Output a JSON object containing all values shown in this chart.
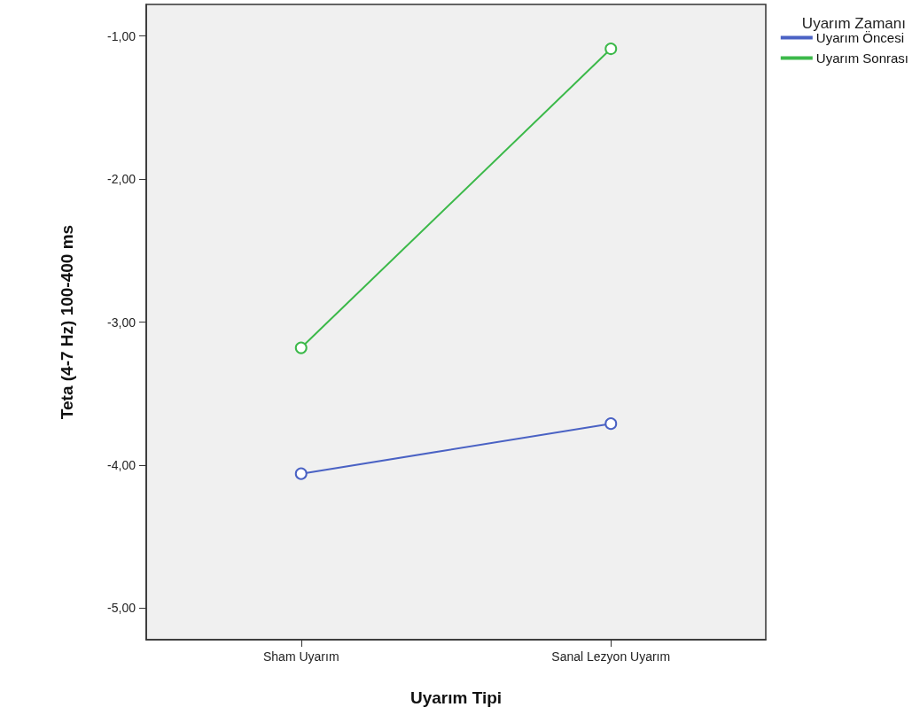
{
  "chart_data": {
    "type": "line",
    "xlabel": "Uyarım Tipi",
    "ylabel": "Teta (4-7 Hz) 100-400 ms",
    "legend_title": "Uyarım Zamanı",
    "categories": [
      "Sham Uyarım",
      "Sanal Lezyon Uyarım"
    ],
    "series": [
      {
        "name": "Uyarım Öncesi",
        "color": "#4a62c4",
        "values": [
          -4.06,
          -3.71
        ]
      },
      {
        "name": "Uyarım Sonrası",
        "color": "#3cb94a",
        "values": [
          -3.18,
          -1.09
        ]
      }
    ],
    "ylim": [
      -5.22,
      -0.78
    ],
    "yticks": [
      {
        "value": -5,
        "label": "-5,00"
      },
      {
        "value": -4,
        "label": "-4,00"
      },
      {
        "value": -3,
        "label": "-3,00"
      },
      {
        "value": -2,
        "label": "-2,00"
      },
      {
        "value": -1,
        "label": "-1,00"
      }
    ],
    "grid": false,
    "legend": "top right",
    "marker": "circle",
    "line_style": "solid"
  }
}
